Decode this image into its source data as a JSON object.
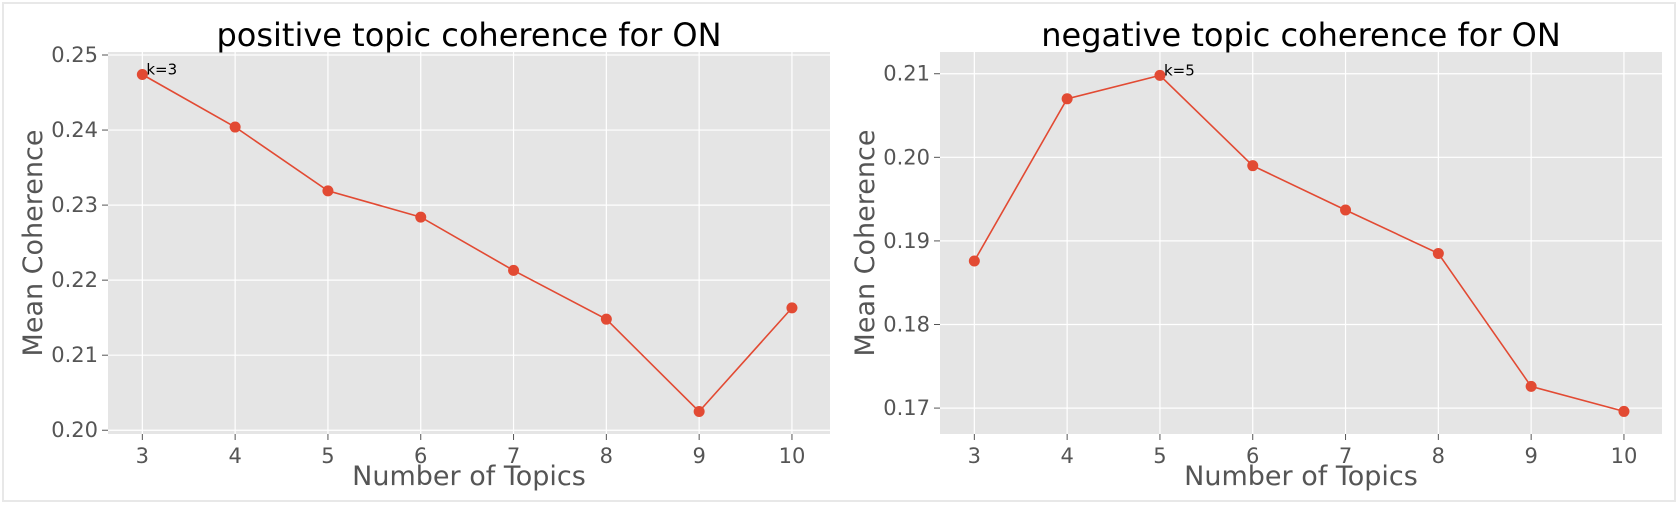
{
  "chart_data": [
    {
      "type": "line",
      "title": "positive topic coherence for ON",
      "xlabel": "Number of Topics",
      "ylabel": "Mean Coherence",
      "x": [
        3,
        4,
        5,
        6,
        7,
        8,
        9,
        10
      ],
      "series": [
        {
          "values": [
            0.2474,
            0.2404,
            0.2319,
            0.2284,
            0.2213,
            0.2148,
            0.2025,
            0.2163
          ]
        }
      ],
      "xticks": [
        "3",
        "4",
        "5",
        "6",
        "7",
        "8",
        "9",
        "10"
      ],
      "yticks": [
        "0.20",
        "0.21",
        "0.22",
        "0.23",
        "0.24",
        "0.25"
      ],
      "ylim": [
        0.1995,
        0.2504
      ],
      "xlim": [
        2.63,
        10.41
      ],
      "annotation": {
        "text": "k=3",
        "x": 3,
        "y": 0.2474
      },
      "grid": true,
      "color": "#e24a33",
      "background": "#e5e5e5"
    },
    {
      "type": "line",
      "title": "negative topic coherence for ON",
      "xlabel": "Number of Topics",
      "ylabel": "Mean Coherence",
      "x": [
        3,
        4,
        5,
        6,
        7,
        8,
        9,
        10
      ],
      "series": [
        {
          "values": [
            0.1876,
            0.207,
            0.2098,
            0.199,
            0.1937,
            0.1885,
            0.1726,
            0.1696
          ]
        }
      ],
      "xticks": [
        "3",
        "4",
        "5",
        "6",
        "7",
        "8",
        "9",
        "10"
      ],
      "yticks": [
        "0.170",
        "0.180",
        "0.190",
        "0.200",
        "0.210"
      ],
      "yticklabels": [
        "0.17",
        "0.18",
        "0.19",
        "0.20",
        "0.21"
      ],
      "ylim": [
        0.1669,
        0.2126
      ],
      "xlim": [
        2.63,
        10.41
      ],
      "annotation": {
        "text": "k=5",
        "x": 5,
        "y": 0.2098
      },
      "grid": true,
      "color": "#e24a33",
      "background": "#e5e5e5"
    }
  ]
}
